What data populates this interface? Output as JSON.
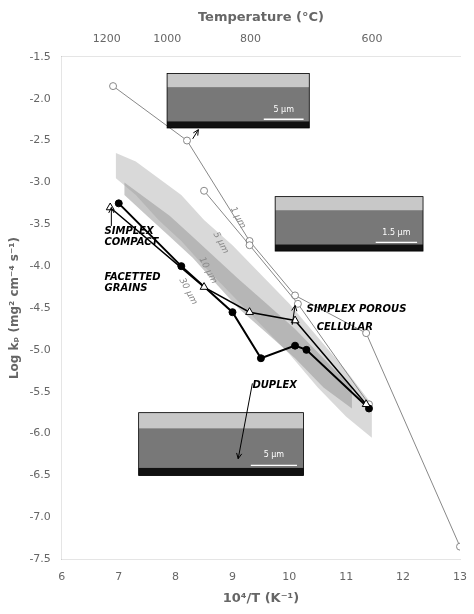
{
  "chart_data": {
    "type": "line",
    "xlabel": "10⁴/T (K⁻¹)",
    "ylabel": "Log kₚ (mg² cm⁻⁴ s⁻¹)",
    "x2label": "Temperature (°C)",
    "xlim": [
      6,
      13
    ],
    "xticks": [
      6,
      7,
      8,
      9,
      10,
      11,
      12,
      13
    ],
    "ylim": [
      -7.5,
      -1.5
    ],
    "yticks": [
      -7.5,
      {
        "value": -7.0,
        "label": "-7.0"
      },
      -6.5,
      {
        "value": -6.0,
        "label": "-6.0"
      },
      -5.5,
      {
        "value": -5.0,
        "label": "-5.0"
      },
      -4.5,
      {
        "value": -4.0,
        "label": "-4.0"
      },
      -3.5,
      {
        "value": -3.0,
        "label": "-3.0"
      },
      -2.5,
      {
        "value": -2.0,
        "label": "-2.0"
      },
      -1.5
    ],
    "x2lim": [
      6,
      13
    ],
    "x2ticks": [
      {
        "value": 6.788175,
        "label": "1200"
      },
      {
        "value": 7.854534,
        "label": "1000"
      },
      {
        "value": 9.318362,
        "label": "800"
      },
      {
        "value": 11.452786,
        "label": "600"
      }
    ],
    "grid": false,
    "series": [
      {
        "color": "#888888",
        "marker": "open_circle",
        "line_style": "solid",
        "x": [
          6.9,
          8.2,
          9.3,
          10.1,
          11.35,
          13.0
        ],
        "values": [
          -1.85,
          -2.5,
          -3.7,
          -4.35,
          -4.8,
          -7.35
        ]
      },
      {
        "color": "#888888",
        "marker": "open_circle",
        "line_style": "solid",
        "x": [
          8.5,
          9.3,
          10.15,
          11.4
        ],
        "values": [
          -3.1,
          -3.75,
          -4.45,
          -5.65
        ]
      },
      {
        "color": "#000000",
        "marker": "circle",
        "line_style": "solid",
        "x": [
          7.0,
          8.1,
          9.0,
          9.5,
          10.1,
          10.3,
          11.4
        ],
        "values": [
          -3.25,
          -4.0,
          -4.55,
          -5.1,
          -4.95,
          -5.0,
          -5.7
        ]
      },
      {
        "color": "#000000",
        "marker": "open_triangle",
        "line_style": "solid",
        "x": [
          6.85,
          8.5,
          9.3,
          10.1,
          11.35
        ],
        "values": [
          -3.3,
          -4.25,
          -4.55,
          -4.65,
          -5.65
        ]
      }
    ],
    "bands": [
      {
        "color": "#cccccc",
        "x": [
          6.95,
          7.3,
          7.7,
          8.1,
          8.5,
          9.0,
          9.5,
          10.0,
          10.5,
          11.0,
          11.45,
          11.45,
          11.0,
          10.5,
          10.0,
          9.5,
          9.0,
          8.5,
          8.1,
          7.7,
          7.3,
          6.95
        ],
        "y": [
          -2.65,
          -2.75,
          -2.95,
          -3.15,
          -3.45,
          -3.75,
          -4.1,
          -4.45,
          -4.85,
          -5.25,
          -5.65,
          -6.05,
          -5.8,
          -5.45,
          -5.05,
          -4.7,
          -4.35,
          -4.0,
          -3.7,
          -3.45,
          -3.15,
          -2.95
        ]
      },
      {
        "color": "#999999",
        "x": [
          7.1,
          7.5,
          7.9,
          8.3,
          8.7,
          9.1,
          9.6,
          10.1,
          10.6,
          11.1,
          11.1,
          10.6,
          10.1,
          9.6,
          9.1,
          8.7,
          8.3,
          7.9,
          7.5,
          7.1
        ],
        "y": [
          -3.0,
          -3.2,
          -3.4,
          -3.65,
          -3.9,
          -4.15,
          -4.45,
          -4.75,
          -5.1,
          -5.45,
          -5.7,
          -5.45,
          -5.1,
          -4.8,
          -4.5,
          -4.2,
          -3.9,
          -3.65,
          -3.4,
          -3.15
        ]
      }
    ],
    "insets": [
      {
        "x": 7.85,
        "y": -2.35,
        "width": 2.5,
        "height": 0.65,
        "label": "5 μm"
      },
      {
        "x": 9.75,
        "y": -3.82,
        "width": 2.6,
        "height": 0.65,
        "label": "1.5 μm"
      },
      {
        "x": 7.35,
        "y": -6.5,
        "width": 2.9,
        "height": 0.75,
        "label": "5 μm"
      }
    ],
    "arrows": [
      {
        "x_start": 8.3,
        "y_start": -2.48,
        "x_end": 8.4,
        "y_end": -2.37
      },
      {
        "x_start": 10.05,
        "y_start": -4.7,
        "x_end": 10.1,
        "y_end": -4.47
      },
      {
        "x_start": 9.35,
        "y_start": -5.4,
        "x_end": 9.1,
        "y_end": -6.3
      },
      {
        "x_start": 6.87,
        "y_start": -3.52,
        "x_end": 6.87,
        "y_end": -3.3
      }
    ],
    "annotations": [
      {
        "text": "SIMPLEX\nCOMPACT",
        "x": 6.75,
        "y": -3.65
      },
      {
        "text": "FACETTED\nGRAINS",
        "x": 6.75,
        "y": -4.2
      },
      {
        "text": "DUPLEX",
        "x": 9.35,
        "y": -5.42
      },
      {
        "text": "SIMPLEX POROUS",
        "x": 10.3,
        "y": -4.52
      },
      {
        "text": "CELLULAR",
        "x": 10.48,
        "y": -4.73
      }
    ],
    "grain_size_labels": [
      {
        "text": "1 μm",
        "x": 9.0,
        "y": -3.3,
        "color": "#888888"
      },
      {
        "text": "5 μm",
        "x": 8.7,
        "y": -3.6,
        "color": "#888888"
      },
      {
        "text": "10 μm",
        "x": 8.45,
        "y": -3.9,
        "color": "#888888"
      },
      {
        "text": "30 μm",
        "x": 8.1,
        "y": -4.15,
        "color": "#888888"
      }
    ]
  }
}
